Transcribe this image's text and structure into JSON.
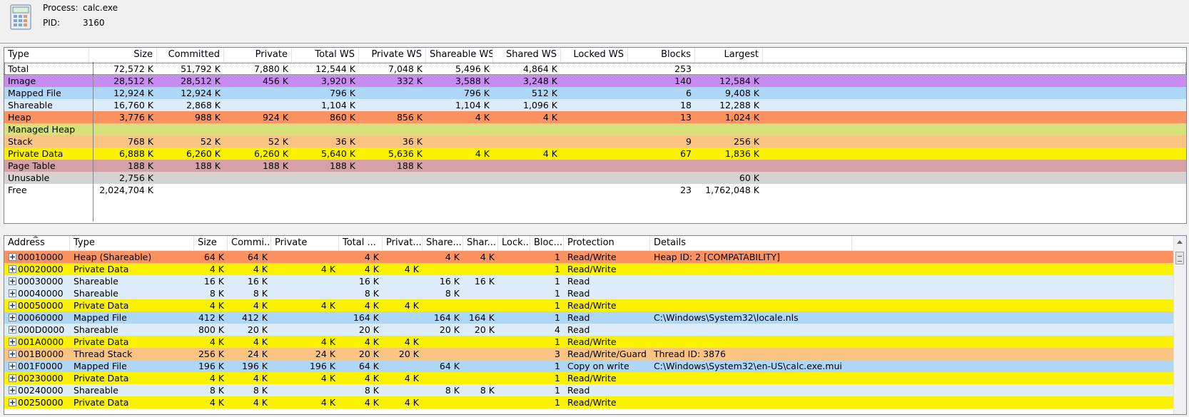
{
  "header": {
    "process_label": "Process:",
    "process_value": "calc.exe",
    "pid_label": "PID:",
    "pid_value": "3160",
    "icon": "calculator-icon"
  },
  "summary": {
    "columns": [
      "Type",
      "Size",
      "Committed",
      "Private",
      "Total WS",
      "Private WS",
      "Shareable WS",
      "Shared WS",
      "Locked WS",
      "Blocks",
      "Largest"
    ],
    "rows": [
      {
        "type": "Total",
        "size": "72,572 K",
        "committed": "51,792 K",
        "private": "7,880 K",
        "total_ws": "12,544 K",
        "private_ws": "7,048 K",
        "shareable_ws": "5,496 K",
        "shared_ws": "4,864 K",
        "locked_ws": "",
        "blocks": "253",
        "largest": "",
        "color": "#ffffff"
      },
      {
        "type": "Image",
        "size": "28,512 K",
        "committed": "28,512 K",
        "private": "456 K",
        "total_ws": "3,920 K",
        "private_ws": "332 K",
        "shareable_ws": "3,588 K",
        "shared_ws": "3,248 K",
        "locked_ws": "",
        "blocks": "140",
        "largest": "12,584 K",
        "color": "#c88cf0"
      },
      {
        "type": "Mapped File",
        "size": "12,924 K",
        "committed": "12,924 K",
        "private": "",
        "total_ws": "796 K",
        "private_ws": "",
        "shareable_ws": "796 K",
        "shared_ws": "512 K",
        "locked_ws": "",
        "blocks": "6",
        "largest": "9,408 K",
        "color": "#aed6f7"
      },
      {
        "type": "Shareable",
        "size": "16,760 K",
        "committed": "2,868 K",
        "private": "",
        "total_ws": "1,104 K",
        "private_ws": "",
        "shareable_ws": "1,104 K",
        "shared_ws": "1,096 K",
        "locked_ws": "",
        "blocks": "18",
        "largest": "12,288 K",
        "color": "#dcecf9"
      },
      {
        "type": "Heap",
        "size": "3,776 K",
        "committed": "988 K",
        "private": "924 K",
        "total_ws": "860 K",
        "private_ws": "856 K",
        "shareable_ws": "4 K",
        "shared_ws": "4 K",
        "locked_ws": "",
        "blocks": "13",
        "largest": "1,024 K",
        "color": "#fd9260"
      },
      {
        "type": "Managed Heap",
        "size": "",
        "committed": "",
        "private": "",
        "total_ws": "",
        "private_ws": "",
        "shareable_ws": "",
        "shared_ws": "",
        "locked_ws": "",
        "blocks": "",
        "largest": "",
        "color": "#d5e27a"
      },
      {
        "type": "Stack",
        "size": "768 K",
        "committed": "52 K",
        "private": "52 K",
        "total_ws": "36 K",
        "private_ws": "36 K",
        "shareable_ws": "",
        "shared_ws": "",
        "locked_ws": "",
        "blocks": "9",
        "largest": "256 K",
        "color": "#fbc483"
      },
      {
        "type": "Private Data",
        "size": "6,888 K",
        "committed": "6,260 K",
        "private": "6,260 K",
        "total_ws": "5,640 K",
        "private_ws": "5,636 K",
        "shareable_ws": "4 K",
        "shared_ws": "4 K",
        "locked_ws": "",
        "blocks": "67",
        "largest": "1,836 K",
        "color": "#fbf200"
      },
      {
        "type": "Page Table",
        "size": "188 K",
        "committed": "188 K",
        "private": "188 K",
        "total_ws": "188 K",
        "private_ws": "188 K",
        "shareable_ws": "",
        "shared_ws": "",
        "locked_ws": "",
        "blocks": "",
        "largest": "",
        "color": "#d5a0a8"
      },
      {
        "type": "Unusable",
        "size": "2,756 K",
        "committed": "",
        "private": "",
        "total_ws": "",
        "private_ws": "",
        "shareable_ws": "",
        "shared_ws": "",
        "locked_ws": "",
        "blocks": "",
        "largest": "60 K",
        "color": "#d3d3d3"
      },
      {
        "type": "Free",
        "size": "2,024,704 K",
        "committed": "",
        "private": "",
        "total_ws": "",
        "private_ws": "",
        "shareable_ws": "",
        "shared_ws": "",
        "locked_ws": "",
        "blocks": "23",
        "largest": "1,762,048 K",
        "color": "#ffffff"
      }
    ]
  },
  "detail": {
    "columns": [
      "Address",
      "Type",
      "Size",
      "Commi...",
      "Private",
      "Total ...",
      "Privat...",
      "Share...",
      "Shar...",
      "Lock...",
      "Bloc...",
      "Protection",
      "Details"
    ],
    "rows": [
      {
        "address": "00010000",
        "type": "Heap (Shareable)",
        "size": "64 K",
        "committed": "64 K",
        "private": "",
        "total_ws": "4 K",
        "private_ws": "",
        "shareable_ws": "4 K",
        "shared_ws": "4 K",
        "locked_ws": "",
        "blocks": "1",
        "protection": "Read/Write",
        "details": "Heap ID: 2 [COMPATABILITY]",
        "color": "#fd9260"
      },
      {
        "address": "00020000",
        "type": "Private Data",
        "size": "4 K",
        "committed": "4 K",
        "private": "4 K",
        "total_ws": "4 K",
        "private_ws": "4 K",
        "shareable_ws": "",
        "shared_ws": "",
        "locked_ws": "",
        "blocks": "1",
        "protection": "Read/Write",
        "details": "",
        "color": "#fbf200"
      },
      {
        "address": "00030000",
        "type": "Shareable",
        "size": "16 K",
        "committed": "16 K",
        "private": "",
        "total_ws": "16 K",
        "private_ws": "",
        "shareable_ws": "16 K",
        "shared_ws": "16 K",
        "locked_ws": "",
        "blocks": "1",
        "protection": "Read",
        "details": "",
        "color": "#dcecf9"
      },
      {
        "address": "00040000",
        "type": "Shareable",
        "size": "8 K",
        "committed": "8 K",
        "private": "",
        "total_ws": "8 K",
        "private_ws": "",
        "shareable_ws": "8 K",
        "shared_ws": "",
        "locked_ws": "",
        "blocks": "1",
        "protection": "Read",
        "details": "",
        "color": "#dcecf9"
      },
      {
        "address": "00050000",
        "type": "Private Data",
        "size": "4 K",
        "committed": "4 K",
        "private": "4 K",
        "total_ws": "4 K",
        "private_ws": "4 K",
        "shareable_ws": "",
        "shared_ws": "",
        "locked_ws": "",
        "blocks": "1",
        "protection": "Read/Write",
        "details": "",
        "color": "#fbf200"
      },
      {
        "address": "00060000",
        "type": "Mapped File",
        "size": "412 K",
        "committed": "412 K",
        "private": "",
        "total_ws": "164 K",
        "private_ws": "",
        "shareable_ws": "164 K",
        "shared_ws": "164 K",
        "locked_ws": "",
        "blocks": "1",
        "protection": "Read",
        "details": "C:\\Windows\\System32\\locale.nls",
        "color": "#aed6f7"
      },
      {
        "address": "000D0000",
        "type": "Shareable",
        "size": "800 K",
        "committed": "20 K",
        "private": "",
        "total_ws": "20 K",
        "private_ws": "",
        "shareable_ws": "20 K",
        "shared_ws": "20 K",
        "locked_ws": "",
        "blocks": "4",
        "protection": "Read",
        "details": "",
        "color": "#dcecf9"
      },
      {
        "address": "001A0000",
        "type": "Private Data",
        "size": "4 K",
        "committed": "4 K",
        "private": "4 K",
        "total_ws": "4 K",
        "private_ws": "4 K",
        "shareable_ws": "",
        "shared_ws": "",
        "locked_ws": "",
        "blocks": "1",
        "protection": "Read/Write",
        "details": "",
        "color": "#fbf200"
      },
      {
        "address": "001B0000",
        "type": "Thread Stack",
        "size": "256 K",
        "committed": "24 K",
        "private": "24 K",
        "total_ws": "20 K",
        "private_ws": "20 K",
        "shareable_ws": "",
        "shared_ws": "",
        "locked_ws": "",
        "blocks": "3",
        "protection": "Read/Write/Guard",
        "details": "Thread ID: 3876",
        "color": "#fbc483"
      },
      {
        "address": "001F0000",
        "type": "Mapped File",
        "size": "196 K",
        "committed": "196 K",
        "private": "196 K",
        "total_ws": "64 K",
        "private_ws": "",
        "shareable_ws": "64 K",
        "shared_ws": "",
        "locked_ws": "",
        "blocks": "1",
        "protection": "Copy on write",
        "details": "C:\\Windows\\System32\\en-US\\calc.exe.mui",
        "color": "#aed6f7"
      },
      {
        "address": "00230000",
        "type": "Private Data",
        "size": "4 K",
        "committed": "4 K",
        "private": "4 K",
        "total_ws": "4 K",
        "private_ws": "4 K",
        "shareable_ws": "",
        "shared_ws": "",
        "locked_ws": "",
        "blocks": "1",
        "protection": "Read/Write",
        "details": "",
        "color": "#fbf200"
      },
      {
        "address": "00240000",
        "type": "Shareable",
        "size": "8 K",
        "committed": "8 K",
        "private": "",
        "total_ws": "8 K",
        "private_ws": "",
        "shareable_ws": "8 K",
        "shared_ws": "8 K",
        "locked_ws": "",
        "blocks": "1",
        "protection": "Read",
        "details": "",
        "color": "#dcecf9"
      },
      {
        "address": "00250000",
        "type": "Private Data",
        "size": "4 K",
        "committed": "4 K",
        "private": "4 K",
        "total_ws": "4 K",
        "private_ws": "4 K",
        "shareable_ws": "",
        "shared_ws": "",
        "locked_ws": "",
        "blocks": "1",
        "protection": "Read/Write",
        "details": "",
        "color": "#fbf200"
      }
    ]
  }
}
